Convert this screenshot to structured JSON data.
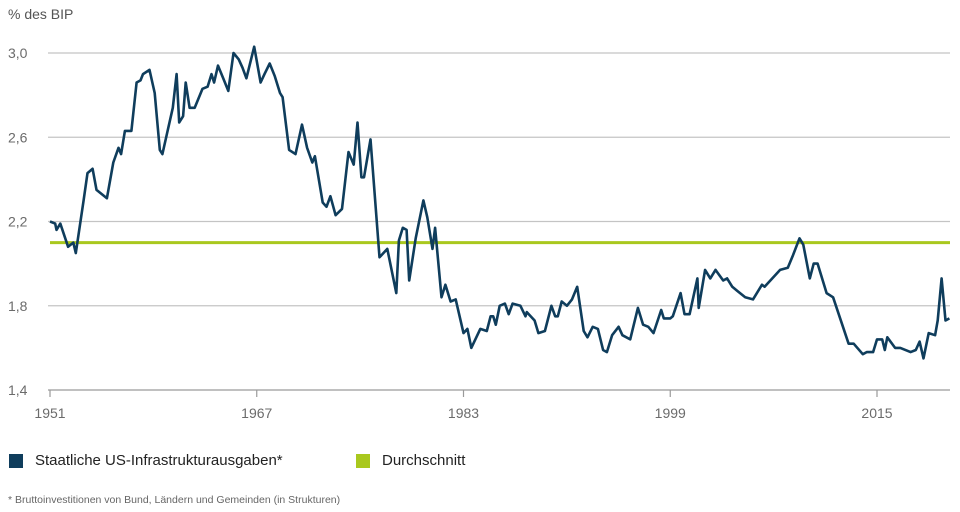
{
  "chart_data": {
    "type": "line",
    "ylabel": "% des BIP",
    "ylim": [
      1.4,
      3.0
    ],
    "yticks": [
      1.4,
      1.8,
      2.2,
      2.6,
      3.0
    ],
    "ytick_labels": [
      "1,4",
      "1,8",
      "2,2",
      "2,6",
      "3,0"
    ],
    "xlim": [
      1951,
      2020.6
    ],
    "xticks": [
      1951,
      1967,
      1983,
      1999,
      2015
    ],
    "xtick_labels": [
      "1951",
      "1967",
      "1983",
      "1999",
      "2015"
    ],
    "grid": "horizontal",
    "legend_position": "bottom",
    "series": [
      {
        "name": "Staatliche US-Infrastrukturausgaben*",
        "color": "#0f3d5c",
        "x": [
          1951.0,
          1951.4,
          1951.5,
          1951.8,
          1952.4,
          1952.8,
          1953.0,
          1953.6,
          1953.9,
          1954.3,
          1954.6,
          1955.4,
          1955.9,
          1956.3,
          1956.5,
          1956.8,
          1957.3,
          1957.7,
          1958.0,
          1958.2,
          1958.7,
          1959.1,
          1959.5,
          1959.7,
          1960.1,
          1960.5,
          1960.8,
          1961.0,
          1961.3,
          1961.5,
          1961.8,
          1962.2,
          1962.8,
          1963.2,
          1963.5,
          1963.7,
          1964.0,
          1964.4,
          1964.8,
          1965.2,
          1965.6,
          1965.9,
          1966.2,
          1966.8,
          1967.3,
          1967.6,
          1968.0,
          1968.4,
          1968.8,
          1969.0,
          1969.5,
          1970.0,
          1970.5,
          1970.9,
          1971.3,
          1971.5,
          1972.1,
          1972.4,
          1972.7,
          1973.1,
          1973.6,
          1974.1,
          1974.5,
          1974.8,
          1975.1,
          1975.3,
          1975.8,
          1976.5,
          1977.1,
          1977.8,
          1978.0,
          1978.3,
          1978.6,
          1978.8,
          1979.3,
          1979.9,
          1980.2,
          1980.6,
          1980.8,
          1981.3,
          1981.6,
          1982.0,
          1982.4,
          1983.0,
          1983.3,
          1983.6,
          1984.3,
          1984.8,
          1985.1,
          1985.3,
          1985.5,
          1985.8,
          1986.2,
          1986.5,
          1986.8,
          1987.4,
          1987.8,
          1987.9,
          1988.5,
          1988.8,
          1989.3,
          1989.8,
          1990.1,
          1990.3,
          1990.6,
          1991.0,
          1991.4,
          1991.8,
          1992.3,
          1992.6,
          1993.0,
          1993.4,
          1993.8,
          1994.1,
          1994.5,
          1995.0,
          1995.3,
          1995.9,
          1996.5,
          1996.9,
          1997.3,
          1997.7,
          1998.3,
          1998.5,
          1999.0,
          1999.2,
          1999.8,
          2000.1,
          2000.5,
          2001.1,
          2001.2,
          2001.7,
          2002.1,
          2002.5,
          2003.1,
          2003.4,
          2003.8,
          2004.2,
          2004.8,
          2005.4,
          2006.1,
          2006.3,
          2006.9,
          2007.5,
          2008.1,
          2008.5,
          2009.0,
          2009.3,
          2009.8,
          2010.1,
          2010.4,
          2011.1,
          2011.6,
          2012.8,
          2013.2,
          2013.9,
          2014.2,
          2014.7,
          2015.0,
          2015.4,
          2015.6,
          2015.8,
          2016.4,
          2016.8,
          2017.6,
          2018.0,
          2018.3,
          2018.6,
          2019.0,
          2019.5,
          2019.7,
          2020.0,
          2020.3,
          2020.6
        ],
        "values": [
          2.2,
          2.19,
          2.16,
          2.19,
          2.08,
          2.1,
          2.05,
          2.3,
          2.43,
          2.45,
          2.35,
          2.31,
          2.48,
          2.55,
          2.52,
          2.63,
          2.63,
          2.86,
          2.87,
          2.9,
          2.92,
          2.81,
          2.54,
          2.52,
          2.63,
          2.74,
          2.9,
          2.67,
          2.7,
          2.86,
          2.74,
          2.74,
          2.83,
          2.84,
          2.9,
          2.86,
          2.94,
          2.88,
          2.82,
          3.0,
          2.97,
          2.93,
          2.88,
          3.03,
          2.86,
          2.9,
          2.95,
          2.89,
          2.81,
          2.79,
          2.54,
          2.52,
          2.66,
          2.55,
          2.48,
          2.51,
          2.29,
          2.27,
          2.32,
          2.23,
          2.26,
          2.53,
          2.47,
          2.67,
          2.41,
          2.41,
          2.59,
          2.03,
          2.07,
          1.86,
          2.11,
          2.17,
          2.16,
          1.92,
          2.12,
          2.3,
          2.22,
          2.07,
          2.17,
          1.84,
          1.9,
          1.82,
          1.83,
          1.67,
          1.69,
          1.6,
          1.69,
          1.68,
          1.75,
          1.75,
          1.71,
          1.8,
          1.81,
          1.76,
          1.81,
          1.8,
          1.75,
          1.77,
          1.73,
          1.67,
          1.68,
          1.8,
          1.75,
          1.75,
          1.82,
          1.8,
          1.83,
          1.89,
          1.68,
          1.65,
          1.7,
          1.69,
          1.59,
          1.58,
          1.66,
          1.7,
          1.66,
          1.64,
          1.79,
          1.71,
          1.7,
          1.67,
          1.78,
          1.74,
          1.74,
          1.75,
          1.86,
          1.76,
          1.76,
          1.93,
          1.79,
          1.97,
          1.93,
          1.97,
          1.92,
          1.93,
          1.89,
          1.87,
          1.84,
          1.83,
          1.9,
          1.89,
          1.93,
          1.97,
          1.98,
          2.04,
          2.12,
          2.09,
          1.93,
          2.0,
          2.0,
          1.86,
          1.84,
          1.62,
          1.62,
          1.57,
          1.58,
          1.58,
          1.64,
          1.64,
          1.59,
          1.65,
          1.6,
          1.6,
          1.58,
          1.59,
          1.63,
          1.55,
          1.67,
          1.66,
          1.73,
          1.93,
          1.73,
          1.74
        ]
      },
      {
        "name": "Durchschnitt",
        "color": "#a9c81e",
        "value": 2.1
      }
    ],
    "footnote": "* Bruttoinvestitionen von Bund, Ländern und Gemeinden (in Strukturen)"
  }
}
